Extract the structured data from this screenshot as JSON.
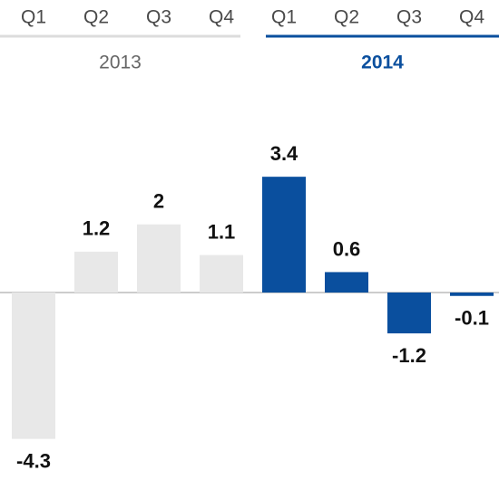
{
  "chart_data": {
    "type": "bar",
    "groups": [
      {
        "name": "2013",
        "color": "#e8e8e8",
        "label_color": "#666666",
        "categories": [
          "Q1",
          "Q2",
          "Q3",
          "Q4"
        ],
        "values": [
          -4.3,
          1.2,
          2,
          1.1
        ]
      },
      {
        "name": "2014",
        "color": "#0a4f9e",
        "label_color": "#0a4f9e",
        "categories": [
          "Q1",
          "Q2",
          "Q3",
          "Q4"
        ],
        "values": [
          3.4,
          0.6,
          -1.2,
          -0.1
        ]
      }
    ]
  }
}
